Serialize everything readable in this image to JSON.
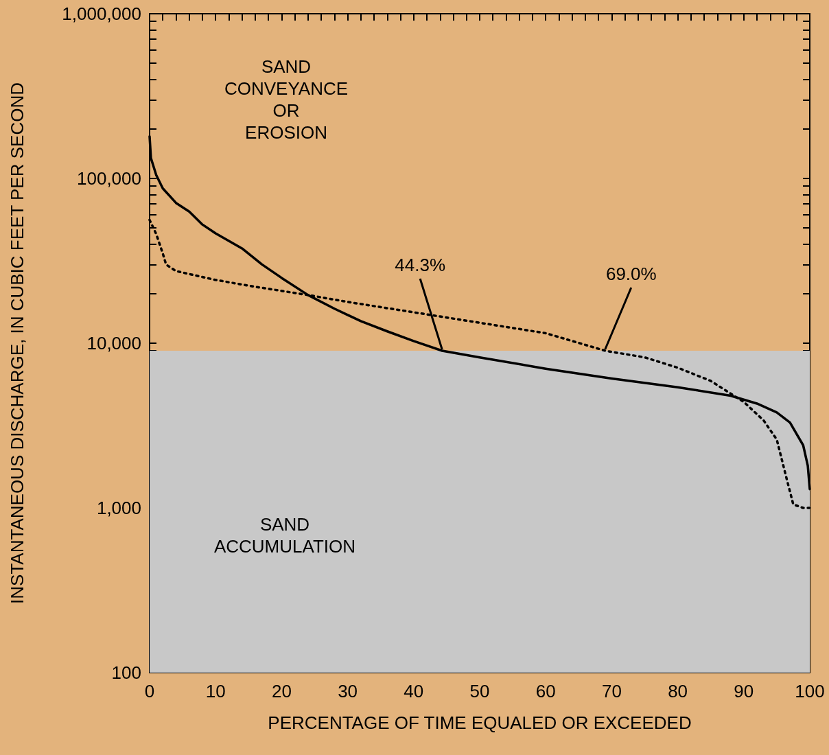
{
  "chart_data": {
    "type": "line",
    "xlabel": "PERCENTAGE OF TIME EQUALED OR EXCEEDED",
    "ylabel": "INSTANTANEOUS DISCHARGE, IN CUBIC FEET PER SECOND",
    "log": "y",
    "grid": false,
    "marker": "none",
    "xlim": [
      0,
      100
    ],
    "ylim": [
      100,
      1000000
    ],
    "xticks": [
      0,
      {
        "value": 2,
        "label": null
      },
      {
        "value": 4,
        "label": null
      },
      {
        "value": 6,
        "label": null
      },
      {
        "value": 8,
        "label": null
      },
      10,
      {
        "value": 12,
        "label": null
      },
      {
        "value": 14,
        "label": null
      },
      {
        "value": 16,
        "label": null
      },
      {
        "value": 18,
        "label": null
      },
      20,
      {
        "value": 22,
        "label": null
      },
      {
        "value": 24,
        "label": null
      },
      {
        "value": 26,
        "label": null
      },
      {
        "value": 28,
        "label": null
      },
      30,
      {
        "value": 32,
        "label": null
      },
      {
        "value": 34,
        "label": null
      },
      {
        "value": 36,
        "label": null
      },
      {
        "value": 38,
        "label": null
      },
      40,
      {
        "value": 42,
        "label": null
      },
      {
        "value": 44,
        "label": null
      },
      {
        "value": 46,
        "label": null
      },
      {
        "value": 48,
        "label": null
      },
      50,
      {
        "value": 52,
        "label": null
      },
      {
        "value": 54,
        "label": null
      },
      {
        "value": 56,
        "label": null
      },
      {
        "value": 58,
        "label": null
      },
      60,
      {
        "value": 62,
        "label": null
      },
      {
        "value": 64,
        "label": null
      },
      {
        "value": 66,
        "label": null
      },
      {
        "value": 68,
        "label": null
      },
      70,
      {
        "value": 72,
        "label": null
      },
      {
        "value": 74,
        "label": null
      },
      {
        "value": 76,
        "label": null
      },
      {
        "value": 78,
        "label": null
      },
      80,
      {
        "value": 82,
        "label": null
      },
      {
        "value": 84,
        "label": null
      },
      {
        "value": 86,
        "label": null
      },
      {
        "value": 88,
        "label": null
      },
      90,
      {
        "value": 92,
        "label": null
      },
      {
        "value": 94,
        "label": null
      },
      {
        "value": 96,
        "label": null
      },
      {
        "value": 98,
        "label": null
      },
      100
    ],
    "yticks": [
      100,
      {
        "value": 200,
        "label": null
      },
      {
        "value": 300,
        "label": null
      },
      {
        "value": 400,
        "label": null
      },
      {
        "value": 500,
        "label": null
      },
      {
        "value": 600,
        "label": null
      },
      {
        "value": 700,
        "label": null
      },
      {
        "value": 800,
        "label": null
      },
      {
        "value": 900,
        "label": null
      },
      {
        "value": 1000,
        "label": "1,000"
      },
      {
        "value": 2000,
        "label": null
      },
      {
        "value": 3000,
        "label": null
      },
      {
        "value": 4000,
        "label": null
      },
      {
        "value": 5000,
        "label": null
      },
      {
        "value": 6000,
        "label": null
      },
      {
        "value": 7000,
        "label": null
      },
      {
        "value": 8000,
        "label": null
      },
      {
        "value": 9000,
        "label": null
      },
      {
        "value": 10000,
        "label": "10,000"
      },
      {
        "value": 20000,
        "label": null
      },
      {
        "value": 30000,
        "label": null
      },
      {
        "value": 40000,
        "label": null
      },
      {
        "value": 50000,
        "label": null
      },
      {
        "value": 60000,
        "label": null
      },
      {
        "value": 70000,
        "label": null
      },
      {
        "value": 80000,
        "label": null
      },
      {
        "value": 90000,
        "label": null
      },
      {
        "value": 100000,
        "label": "100,000"
      },
      {
        "value": 200000,
        "label": null
      },
      {
        "value": 300000,
        "label": null
      },
      {
        "value": 400000,
        "label": null
      },
      {
        "value": 500000,
        "label": null
      },
      {
        "value": 600000,
        "label": null
      },
      {
        "value": 700000,
        "label": null
      },
      {
        "value": 800000,
        "label": null
      },
      {
        "value": 900000,
        "label": null
      },
      {
        "value": 1000000,
        "label": "1,000,000"
      }
    ],
    "bands": [
      {
        "axis": "y",
        "from": 100,
        "to": 9000,
        "color": "#c8c8c8"
      }
    ],
    "series": [
      {
        "color": "#000000",
        "line_style": "solid",
        "x": [
          0,
          0.2,
          1,
          2,
          4,
          6,
          8,
          10,
          14,
          17,
          20,
          24,
          28,
          32,
          36,
          40,
          44.3,
          50,
          60,
          70,
          80,
          88,
          92,
          95,
          97,
          99,
          99.7,
          100
        ],
        "values": [
          180000,
          133000,
          105000,
          87000,
          71000,
          63000,
          52500,
          46400,
          37600,
          30100,
          24900,
          19600,
          16200,
          13600,
          11800,
          10300,
          9000,
          8200,
          7000,
          6100,
          5400,
          4800,
          4300,
          3800,
          3300,
          2400,
          1800,
          1300
        ]
      },
      {
        "color": "#000000",
        "line_style": "dotted",
        "x": [
          0,
          1,
          2,
          2.5,
          4,
          10,
          16,
          24,
          30,
          40,
          50,
          60,
          69,
          75,
          80,
          85,
          90,
          93,
          95,
          96.5,
          97.5,
          99,
          100
        ],
        "values": [
          56000,
          46000,
          35000,
          30000,
          27400,
          24200,
          22000,
          19600,
          17800,
          15400,
          13300,
          11500,
          9000,
          8200,
          7100,
          5900,
          4400,
          3400,
          2600,
          1500,
          1050,
          1000,
          1000
        ]
      }
    ],
    "annotations": [
      "SAND\nCONVEYANCE\nOR\nEROSION",
      "SAND\nACCUMULATION",
      {
        "text": "44.3%",
        "x": 44.3,
        "y": 9000
      },
      {
        "text": "69.0%",
        "x": 69.0,
        "y": 9000
      }
    ]
  }
}
